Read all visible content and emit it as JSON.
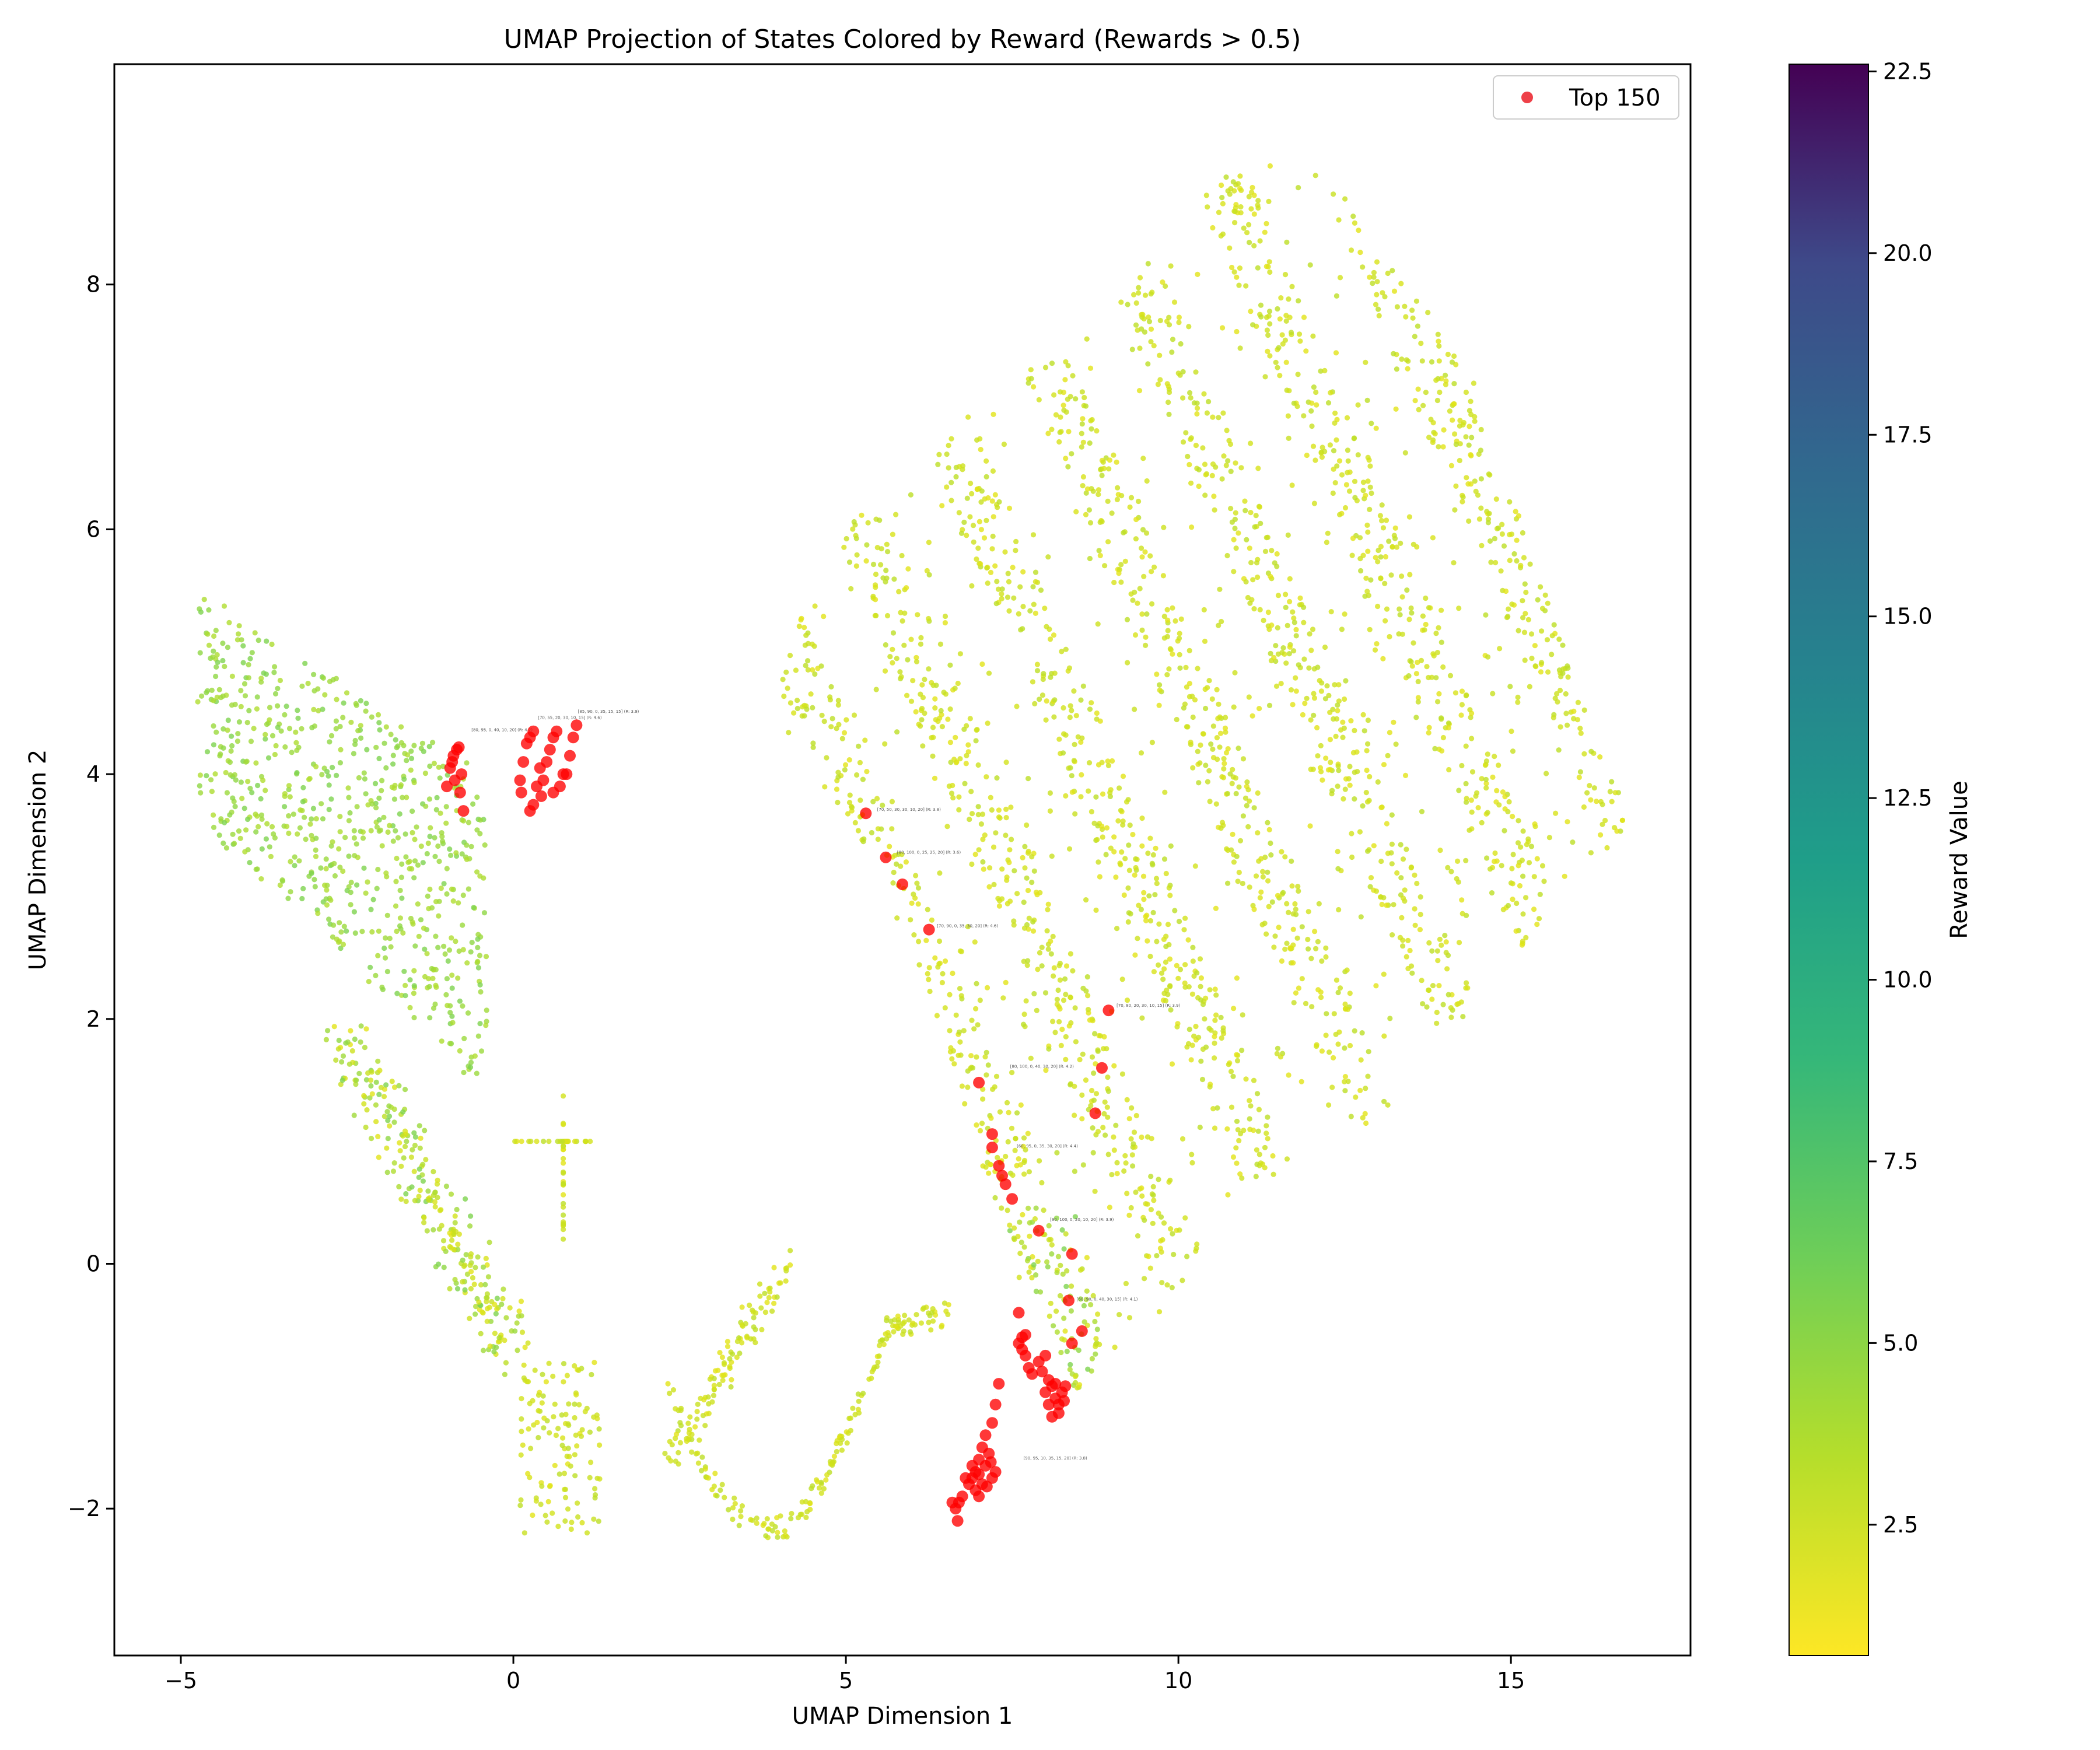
{
  "chart_data": {
    "type": "scatter",
    "title": "UMAP Projection of States Colored by Reward (Rewards > 0.5)",
    "xlabel": "UMAP Dimension 1",
    "ylabel": "UMAP Dimension 2",
    "xlim": [
      -6,
      17.7
    ],
    "ylim": [
      -3.2,
      9.8
    ],
    "xticks": [
      {
        "v": -5,
        "label": "−5"
      },
      {
        "v": 0,
        "label": "0"
      },
      {
        "v": 5,
        "label": "5"
      },
      {
        "v": 10,
        "label": "10"
      },
      {
        "v": 15,
        "label": "15"
      }
    ],
    "yticks": [
      {
        "v": -2,
        "label": "−2"
      },
      {
        "v": 0,
        "label": "0"
      },
      {
        "v": 2,
        "label": "2"
      },
      {
        "v": 4,
        "label": "4"
      },
      {
        "v": 6,
        "label": "6"
      },
      {
        "v": 8,
        "label": "8"
      }
    ],
    "grid": false,
    "colorbar": {
      "label": "Reward Value",
      "range": [
        0.7,
        22.6
      ],
      "colormap": "viridis",
      "ticks": [
        {
          "v": 2.5,
          "label": "2.5"
        },
        {
          "v": 5.0,
          "label": "5.0"
        },
        {
          "v": 7.5,
          "label": "7.5"
        },
        {
          "v": 10.0,
          "label": "10.0"
        },
        {
          "v": 12.5,
          "label": "12.5"
        },
        {
          "v": 15.0,
          "label": "15.0"
        },
        {
          "v": 17.5,
          "label": "17.5"
        },
        {
          "v": 20.0,
          "label": "20.0"
        },
        {
          "v": 22.5,
          "label": "22.5"
        }
      ]
    },
    "legend": {
      "position": "top-right",
      "entries": [
        {
          "label": "Top 150",
          "color": "#e8000b"
        }
      ]
    },
    "series": [
      {
        "name": "Top 150",
        "color": "#ff0000",
        "points": [
          [
            -0.95,
            4.05
          ],
          [
            -0.9,
            4.15
          ],
          [
            -0.85,
            4.2
          ],
          [
            -0.88,
            3.95
          ],
          [
            -0.8,
            3.85
          ],
          [
            -0.75,
            3.7
          ],
          [
            -1.0,
            3.9
          ],
          [
            -0.92,
            4.1
          ],
          [
            -0.82,
            4.22
          ],
          [
            -0.78,
            4.0
          ],
          [
            0.1,
            3.95
          ],
          [
            0.15,
            4.1
          ],
          [
            0.2,
            4.25
          ],
          [
            0.3,
            4.35
          ],
          [
            0.25,
            4.3
          ],
          [
            0.12,
            3.85
          ],
          [
            0.35,
            3.9
          ],
          [
            0.4,
            4.05
          ],
          [
            0.45,
            3.95
          ],
          [
            0.55,
            4.2
          ],
          [
            0.6,
            4.3
          ],
          [
            0.65,
            4.35
          ],
          [
            0.5,
            4.1
          ],
          [
            0.7,
            3.9
          ],
          [
            0.75,
            4.0
          ],
          [
            0.85,
            4.15
          ],
          [
            0.9,
            4.3
          ],
          [
            0.95,
            4.4
          ],
          [
            0.3,
            3.75
          ],
          [
            0.25,
            3.7
          ],
          [
            0.6,
            3.85
          ],
          [
            0.8,
            4.0
          ],
          [
            0.42,
            3.82
          ],
          [
            5.3,
            3.68
          ],
          [
            5.6,
            3.32
          ],
          [
            5.85,
            3.1
          ],
          [
            6.25,
            2.73
          ],
          [
            7.0,
            1.48
          ],
          [
            7.2,
            1.06
          ],
          [
            7.2,
            0.95
          ],
          [
            7.3,
            0.8
          ],
          [
            7.35,
            0.72
          ],
          [
            7.4,
            0.65
          ],
          [
            7.5,
            0.53
          ],
          [
            7.9,
            0.27
          ],
          [
            8.4,
            0.08
          ],
          [
            8.75,
            1.23
          ],
          [
            8.85,
            1.6
          ],
          [
            8.95,
            2.07
          ],
          [
            7.6,
            -0.4
          ],
          [
            8.35,
            -0.3
          ],
          [
            8.55,
            -0.55
          ],
          [
            8.4,
            -0.65
          ],
          [
            7.6,
            -0.65
          ],
          [
            7.65,
            -0.7
          ],
          [
            7.7,
            -0.75
          ],
          [
            7.75,
            -0.85
          ],
          [
            7.8,
            -0.9
          ],
          [
            7.9,
            -0.8
          ],
          [
            8.0,
            -0.75
          ],
          [
            7.95,
            -0.88
          ],
          [
            8.05,
            -0.95
          ],
          [
            7.65,
            -0.6
          ],
          [
            7.7,
            -0.58
          ],
          [
            8.1,
            -1.0
          ],
          [
            8.15,
            -1.1
          ],
          [
            8.2,
            -1.15
          ],
          [
            8.25,
            -1.05
          ],
          [
            8.3,
            -1.0
          ],
          [
            8.2,
            -1.22
          ],
          [
            8.1,
            -1.25
          ],
          [
            8.15,
            -0.98
          ],
          [
            8.28,
            -1.12
          ],
          [
            8.0,
            -1.05
          ],
          [
            8.05,
            -1.15
          ],
          [
            7.3,
            -0.98
          ],
          [
            7.25,
            -1.15
          ],
          [
            7.2,
            -1.3
          ],
          [
            7.1,
            -1.4
          ],
          [
            7.05,
            -1.5
          ],
          [
            7.0,
            -1.6
          ],
          [
            6.95,
            -1.7
          ],
          [
            6.9,
            -1.65
          ],
          [
            6.85,
            -1.8
          ],
          [
            6.8,
            -1.75
          ],
          [
            7.1,
            -1.65
          ],
          [
            7.15,
            -1.55
          ],
          [
            7.2,
            -1.75
          ],
          [
            7.25,
            -1.7
          ],
          [
            7.05,
            -1.8
          ],
          [
            7.0,
            -1.9
          ],
          [
            6.95,
            -1.85
          ],
          [
            6.7,
            -1.95
          ],
          [
            6.65,
            -2.0
          ],
          [
            6.6,
            -1.95
          ],
          [
            6.75,
            -1.9
          ],
          [
            6.68,
            -2.1
          ],
          [
            6.9,
            -1.75
          ],
          [
            7.0,
            -1.72
          ],
          [
            7.12,
            -1.82
          ],
          [
            7.18,
            -1.62
          ]
        ]
      }
    ],
    "annotations": [
      "[80, 95, 0, 40, 10, 20] (R: 4.2)",
      "[70, 55, 20, 30, 10, 15] (R: 4.6)",
      "[85, 90, 0, 35, 15, 15] (R: 3.9)",
      "[70, 50, 30, 30, 10, 20] (R: 3.8)",
      "[80, 100, 0, 25, 25, 20] (R: 3.6)",
      "[70, 90, 0, 35, 30, 20] (R: 4.6)",
      "[80, 100, 0, 40, 30, 20] (R: 4.2)",
      "[70, 80, 20, 30, 10, 15] (R: 3.9)",
      "[60, 95, 0, 35, 30, 20] (R: 4.4)",
      "[90, 100, 0, 20, 10, 20] (R: 3.9)",
      "[60, 90, 0, 40, 30, 15] (R: 4.1)",
      "[90, 95, 10, 35, 15, 20] (R: 3.8)"
    ]
  }
}
